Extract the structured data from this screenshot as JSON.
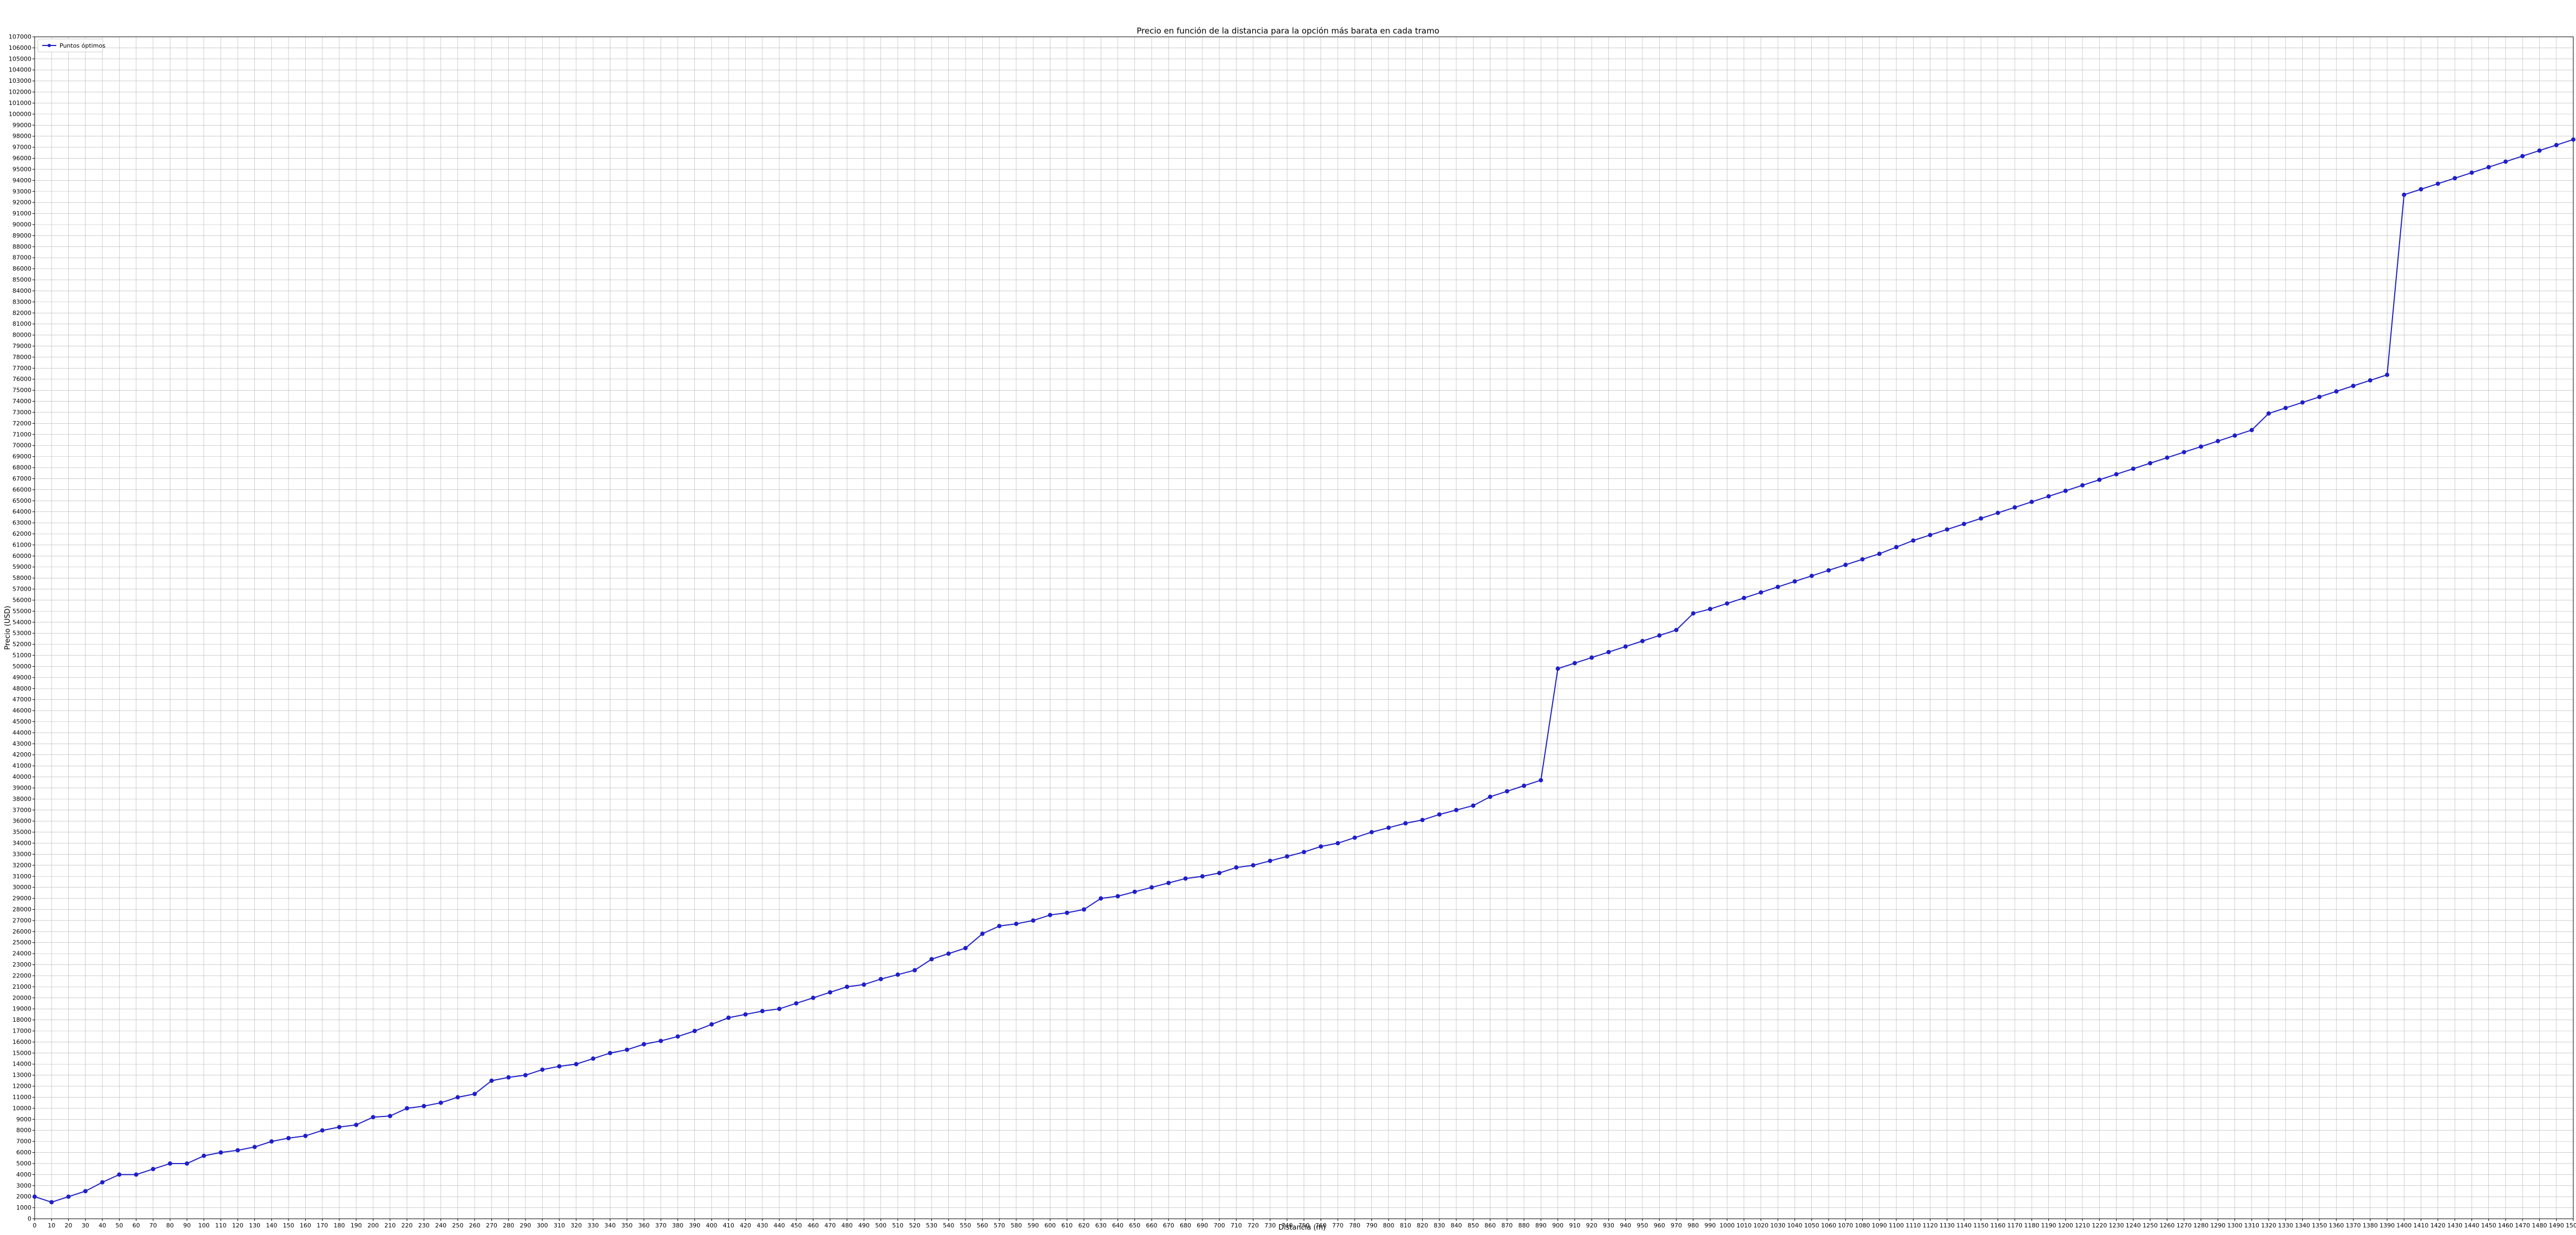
{
  "chart_data": {
    "type": "line",
    "title": "Precio en función de la distancia para la opción más barata en cada tramo",
    "xlabel": "Distancia (m)",
    "ylabel": "Precio (USD)",
    "xlim": [
      0,
      1500
    ],
    "ylim": [
      0,
      107000
    ],
    "x_tick_step": 10,
    "y_tick_step": 1000,
    "grid": true,
    "legend_position": "top-left",
    "series": [
      {
        "name": "Puntos óptimos",
        "color": "#1f1fc8",
        "marker": "circle",
        "x": [
          0,
          10,
          20,
          30,
          40,
          50,
          60,
          70,
          80,
          90,
          100,
          110,
          120,
          130,
          140,
          150,
          160,
          170,
          180,
          190,
          200,
          210,
          220,
          230,
          240,
          250,
          260,
          270,
          280,
          290,
          300,
          310,
          320,
          330,
          340,
          350,
          360,
          370,
          380,
          390,
          400,
          410,
          420,
          430,
          440,
          450,
          460,
          470,
          480,
          490,
          500,
          510,
          520,
          530,
          540,
          550,
          560,
          570,
          580,
          590,
          600,
          610,
          620,
          630,
          640,
          650,
          660,
          670,
          680,
          690,
          700,
          710,
          720,
          730,
          740,
          750,
          760,
          770,
          780,
          790,
          800,
          810,
          820,
          830,
          840,
          850,
          860,
          870,
          880,
          890,
          900,
          910,
          920,
          930,
          940,
          950,
          960,
          970,
          980,
          990,
          1000,
          1010,
          1020,
          1030,
          1040,
          1050,
          1060,
          1070,
          1080,
          1090,
          1100,
          1110,
          1120,
          1130,
          1140,
          1150,
          1160,
          1170,
          1180,
          1190,
          1200,
          1210,
          1220,
          1230,
          1240,
          1250,
          1260,
          1270,
          1280,
          1290,
          1300,
          1310,
          1320,
          1330,
          1340,
          1350,
          1360,
          1370,
          1380,
          1390,
          1400,
          1410,
          1420,
          1430,
          1440,
          1450,
          1460,
          1470,
          1480,
          1490,
          1500
        ],
        "y": [
          2000,
          1500,
          2000,
          2500,
          3300,
          4000,
          4000,
          4500,
          5000,
          5000,
          5700,
          6000,
          6200,
          6500,
          7000,
          7300,
          7500,
          8000,
          8300,
          8500,
          9200,
          9300,
          10000,
          10200,
          10500,
          11000,
          11300,
          12500,
          12800,
          13000,
          13500,
          13800,
          14000,
          14500,
          15000,
          15300,
          15800,
          16100,
          16500,
          17000,
          17600,
          18200,
          18500,
          18800,
          19000,
          19500,
          20000,
          20500,
          21000,
          21200,
          21700,
          22100,
          22500,
          23500,
          24000,
          24500,
          25800,
          26500,
          26700,
          27000,
          27500,
          27700,
          28000,
          29000,
          29200,
          29600,
          30000,
          30400,
          30800,
          31000,
          31300,
          31800,
          32000,
          32400,
          32800,
          33200,
          33700,
          34000,
          34500,
          35000,
          35400,
          35800,
          36100,
          36600,
          37000,
          37400,
          38200,
          38700,
          39200,
          39700,
          49800,
          50300,
          50800,
          51300,
          51800,
          52300,
          52800,
          53300,
          54800,
          55200,
          55700,
          56200,
          56700,
          57200,
          57700,
          58200,
          58700,
          59200,
          59700,
          60200,
          60800,
          61400,
          61900,
          62400,
          62900,
          63400,
          63900,
          64400,
          64900,
          65400,
          65900,
          66400,
          66900,
          67400,
          67900,
          68400,
          68900,
          69400,
          69900,
          70400,
          70900,
          71400,
          72900,
          73400,
          73900,
          74400,
          74900,
          75400,
          75900,
          76400,
          92700,
          93200,
          93700,
          94200,
          94700,
          95200,
          95700,
          96200,
          96700,
          97200,
          97700
        ]
      }
    ],
    "annotations_note_removed": true,
    "point_labels": []
  }
}
